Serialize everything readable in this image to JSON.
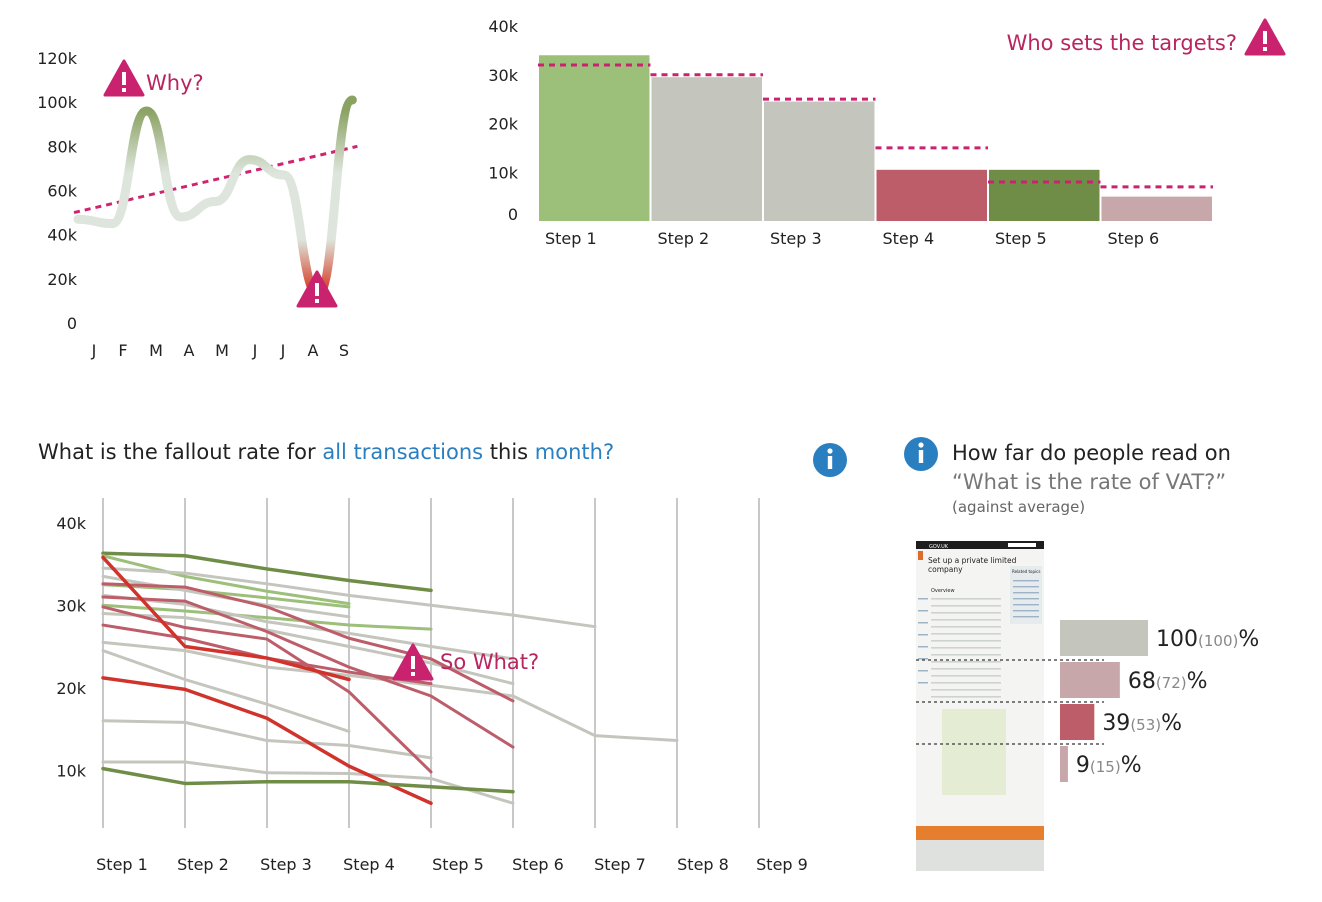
{
  "colors": {
    "green": "#9cc07a",
    "darkgreen": "#6f8d46",
    "grey": "#c4c5bd",
    "red": "#bd5d6a",
    "pink": "#c8a7aa",
    "magenta": "#c9226f",
    "blue": "#2a7fc1",
    "line_red": "#d0332c"
  },
  "chart1": {
    "type": "line",
    "categories": [
      "J",
      "F",
      "M",
      "A",
      "M",
      "J",
      "J",
      "A",
      "S"
    ],
    "values": [
      47000,
      45000,
      96000,
      48000,
      55000,
      74000,
      67000,
      13000,
      101000
    ],
    "trend": [
      50000,
      80000
    ],
    "ylim": [
      0,
      120000
    ],
    "yticks": [
      "0",
      "20k",
      "40k",
      "60k",
      "80k",
      "100k",
      "120k"
    ],
    "annotations": [
      {
        "text": "Why?",
        "icon": "warning-icon"
      },
      {
        "text": "",
        "icon": "warning-icon"
      }
    ]
  },
  "chart2": {
    "type": "bar",
    "categories": [
      "Step 1",
      "Step 2",
      "Step 3",
      "Step 4",
      "Step 5",
      "Step 6"
    ],
    "values": [
      34000,
      29500,
      24500,
      10500,
      10500,
      5000
    ],
    "targets": [
      32000,
      30000,
      25000,
      15000,
      8000,
      7000
    ],
    "bar_colors": [
      "green",
      "grey",
      "grey",
      "red",
      "darkgreen",
      "pink"
    ],
    "ylim": [
      0,
      40000
    ],
    "yticks": [
      "0",
      "10k",
      "20k",
      "30k",
      "40k"
    ],
    "annotation": "Who sets the targets?"
  },
  "chart3": {
    "type": "line",
    "title_parts": [
      "What is the fallout rate for ",
      "all transactions",
      " this ",
      "month?"
    ],
    "categories": [
      "Step 1",
      "Step 2",
      "Step 3",
      "Step 4",
      "Step 5",
      "Step 6",
      "Step 7",
      "Step 8",
      "Step 9"
    ],
    "yticks": [
      "10k",
      "20k",
      "30k",
      "40k"
    ],
    "ylim": [
      3000,
      43000
    ],
    "annotation": "So What?",
    "series": [
      {
        "color": "darkgreen",
        "width": 3.5,
        "values": [
          36300,
          36000,
          34400,
          33000,
          31800
        ]
      },
      {
        "color": "green",
        "width": 3,
        "values": [
          36000,
          33500,
          31700,
          30200
        ]
      },
      {
        "color": "green",
        "width": 3,
        "values": [
          32500,
          31900,
          30900,
          29800
        ]
      },
      {
        "color": "green",
        "width": 3,
        "values": [
          30000,
          29300,
          28500,
          27600,
          27100
        ]
      },
      {
        "color": "grey",
        "width": 3,
        "values": [
          34500,
          33900,
          32600,
          31200,
          30000,
          28800,
          27400
        ]
      },
      {
        "color": "grey",
        "width": 3,
        "values": [
          33500,
          31800,
          30000,
          28600
        ]
      },
      {
        "color": "grey",
        "width": 3,
        "values": [
          31200,
          30100,
          28000,
          26600,
          25000,
          23500
        ]
      },
      {
        "color": "grey",
        "width": 3,
        "values": [
          29000,
          28500,
          27000,
          25000,
          23000,
          20500
        ]
      },
      {
        "color": "grey",
        "width": 3,
        "values": [
          25500,
          24500,
          22500,
          21500,
          20300,
          19000,
          14200,
          13600
        ]
      },
      {
        "color": "grey",
        "width": 3,
        "values": [
          24500,
          21000,
          18000,
          14700
        ]
      },
      {
        "color": "grey",
        "width": 3,
        "values": [
          16000,
          15800,
          13600,
          13000,
          11500
        ]
      },
      {
        "color": "grey",
        "width": 3,
        "values": [
          11000,
          11000,
          9700,
          9600,
          9000,
          6000
        ]
      },
      {
        "color": "red",
        "width": 3,
        "values": [
          32600,
          32200,
          29800,
          26000,
          23500,
          18400
        ]
      },
      {
        "color": "red",
        "width": 3,
        "values": [
          31000,
          30500,
          26800,
          22500,
          19000,
          12800
        ]
      },
      {
        "color": "red",
        "width": 3,
        "values": [
          29800,
          27300,
          25900,
          19500,
          9800
        ]
      },
      {
        "color": "red",
        "width": 3,
        "values": [
          27600,
          26000,
          23600,
          21900,
          20500
        ]
      },
      {
        "color": "line_red",
        "width": 3.5,
        "values": [
          35800,
          25000,
          23600,
          21000
        ]
      },
      {
        "color": "line_red",
        "width": 3.5,
        "values": [
          21200,
          19800,
          16300,
          10500,
          6000
        ]
      },
      {
        "color": "darkgreen",
        "width": 3.5,
        "values": [
          10200,
          8400,
          8600,
          8600,
          8000,
          7400
        ]
      }
    ]
  },
  "chart4": {
    "type": "bar",
    "title": "How far do people read on",
    "quote": "“What is the rate of VAT?”",
    "subtitle": "(against average)",
    "rows": [
      {
        "value": 100,
        "big": "100",
        "small": "(100)",
        "pct": "%",
        "color": "grey"
      },
      {
        "value": 68,
        "big": "68",
        "small": "(72)",
        "pct": "%",
        "color": "pink"
      },
      {
        "value": 39,
        "big": "39",
        "small": "(53)",
        "pct": "%",
        "color": "red"
      },
      {
        "value": 9,
        "big": "9",
        "small": "(15)",
        "pct": "%",
        "color": "pink"
      }
    ],
    "thumbnail": {
      "site": "GOV.UK",
      "heading": "Set up a private limited company",
      "section": "Overview",
      "box_title": "Related topics"
    }
  }
}
